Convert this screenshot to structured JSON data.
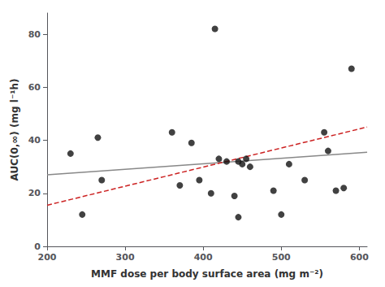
{
  "chart_data": {
    "type": "scatter",
    "xlabel": "MMF dose per body surface area (mg m⁻²)",
    "ylabel": "AUC(0,∞) (mg l⁻¹h)",
    "xlim": [
      200,
      610
    ],
    "ylim": [
      0,
      88
    ],
    "xticks": [
      200,
      300,
      400,
      500,
      600
    ],
    "yticks": [
      0,
      20,
      40,
      60,
      80
    ],
    "grid": false,
    "series": [
      {
        "type": "scatter",
        "color": "#111111",
        "marker": "circle",
        "x": [
          230,
          245,
          265,
          270,
          360,
          370,
          385,
          395,
          410,
          415,
          420,
          430,
          440,
          445,
          445,
          450,
          455,
          460,
          490,
          500,
          510,
          530,
          555,
          560,
          570,
          580,
          590
        ],
        "values": [
          35,
          12,
          41,
          25,
          43,
          23,
          39,
          25,
          20,
          82,
          33,
          32,
          19,
          11,
          32,
          31,
          33,
          30,
          21,
          12,
          31,
          25,
          43,
          36,
          21,
          22,
          67
        ]
      },
      {
        "type": "line",
        "color": "#888888",
        "line_style": "solid",
        "x": [
          200,
          610
        ],
        "values": [
          27.0,
          35.5
        ]
      },
      {
        "type": "line",
        "color": "#cc2222",
        "line_style": "dashed",
        "x": [
          200,
          610
        ],
        "values": [
          15.5,
          45.0
        ]
      }
    ]
  }
}
